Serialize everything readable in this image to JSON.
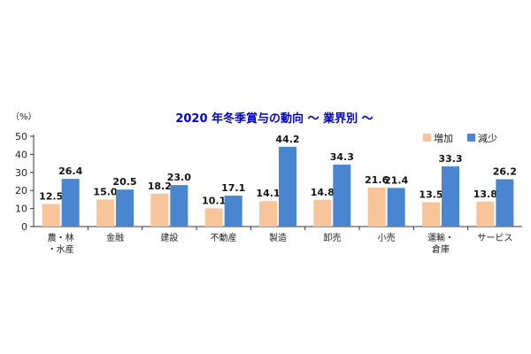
{
  "chart_data": {
    "type": "bar",
    "title": "2020 年冬季賞与の動向 ～ 業界別 ～",
    "y_unit": "（%）",
    "ylim": [
      0,
      50
    ],
    "yticks": [
      0,
      10,
      20,
      30,
      40,
      50
    ],
    "categories": [
      [
        "農・林",
        "・水産"
      ],
      [
        "金融"
      ],
      [
        "建設"
      ],
      [
        "不動産"
      ],
      [
        "製造"
      ],
      [
        "卸売"
      ],
      [
        "小売"
      ],
      [
        "運輸・",
        "倉庫"
      ],
      [
        "サービス"
      ]
    ],
    "series": [
      {
        "name": "増加",
        "color": "#F8C49A",
        "values": [
          12.5,
          15.0,
          18.2,
          10.1,
          14.1,
          14.8,
          21.6,
          13.5,
          13.8
        ]
      },
      {
        "name": "減少",
        "color": "#4A86D0",
        "values": [
          26.4,
          20.5,
          23.0,
          17.1,
          44.2,
          34.3,
          21.4,
          33.3,
          26.2
        ]
      }
    ],
    "legend": "top-right",
    "grid": false
  }
}
